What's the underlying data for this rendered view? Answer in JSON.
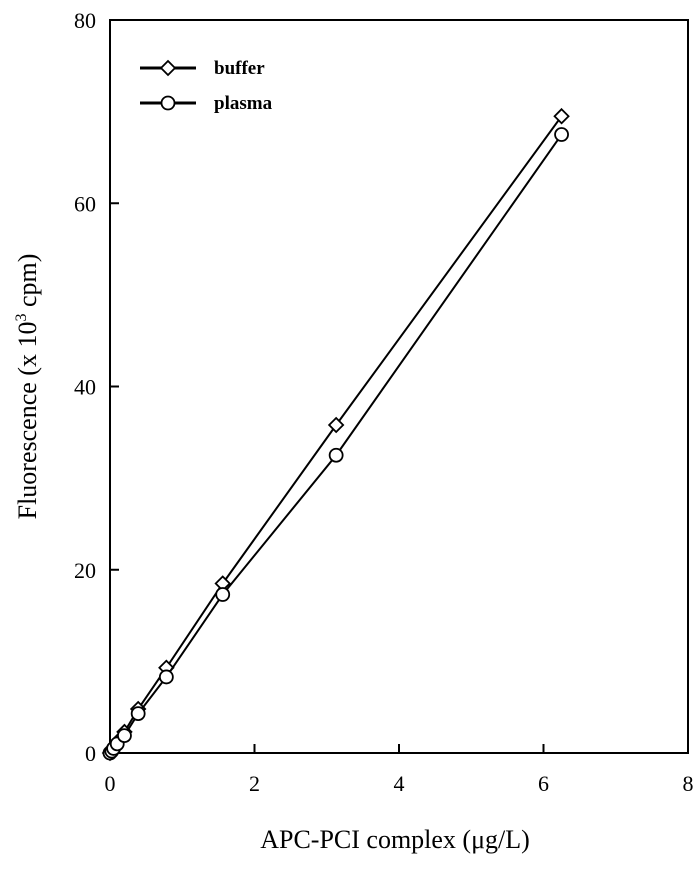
{
  "chart_data": {
    "type": "line",
    "xlabel": "APC-PCI complex  (μg/L)",
    "ylabel_main": "Fluorescence (x 10",
    "ylabel_sup": "3",
    "ylabel_tail": " cpm)",
    "xlim": [
      0,
      8
    ],
    "ylim": [
      0,
      80
    ],
    "xticks": [
      "0",
      "2",
      "4",
      "6",
      "8"
    ],
    "yticks": [
      "0",
      "20",
      "40",
      "60",
      "80"
    ],
    "grid": false,
    "legend_position": "top-left",
    "series": [
      {
        "name": "buffer",
        "marker": "diamond",
        "x": [
          0,
          0.025,
          0.05,
          0.1,
          0.2,
          0.39,
          0.78,
          1.56,
          3.13,
          6.25
        ],
        "y": [
          0,
          0.3,
          0.6,
          1.2,
          2.3,
          4.8,
          9.3,
          18.5,
          35.8,
          69.5
        ]
      },
      {
        "name": "plasma",
        "marker": "circle",
        "x": [
          0,
          0.025,
          0.05,
          0.1,
          0.2,
          0.39,
          0.78,
          1.56,
          3.13,
          6.25
        ],
        "y": [
          0,
          0.2,
          0.5,
          1.0,
          1.9,
          4.3,
          8.3,
          17.3,
          32.5,
          67.5
        ]
      }
    ]
  }
}
